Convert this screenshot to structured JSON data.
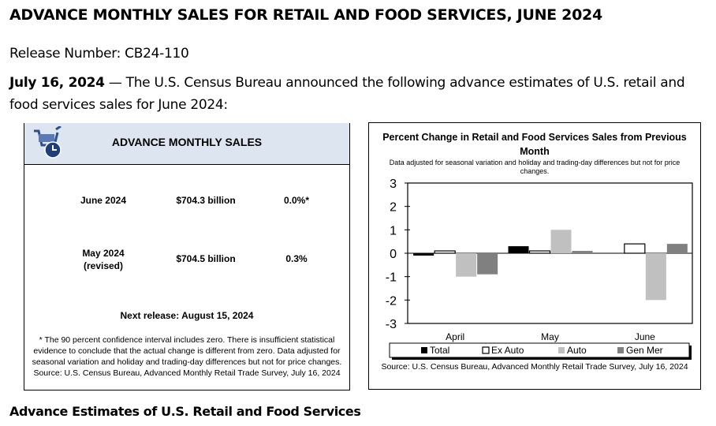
{
  "title": "ADVANCE MONTHLY SALES FOR RETAIL AND FOOD SERVICES, JUNE 2024",
  "release_number": "Release Number: CB24-110",
  "intro": {
    "date": "July 16, 2024",
    "text": " — The U.S. Census Bureau announced the following advance estimates of U.S. retail and food services sales for June 2024:"
  },
  "card": {
    "icon": "shopping-cart-clock-icon",
    "title": "ADVANCE MONTHLY SALES",
    "rows": [
      {
        "period": "June 2024",
        "sales": "$704.3 billion",
        "change": "0.0%*"
      },
      {
        "period": "May 2024",
        "period2": "(revised)",
        "sales": "$704.5 billion",
        "change": "0.3%"
      }
    ],
    "next_release": "Next release: August 15, 2024",
    "note": "* The 90 percent confidence interval includes zero. There is insufficient statistical evidence to conclude that the actual change is different from zero. Data adjusted for seasonal variation and holiday and trading-day differences but not for price changes. Source: U.S. Census Bureau, Advanced Monthly Retail Trade Survey, July 16, 2024"
  },
  "chart_data": {
    "type": "bar",
    "title": "Percent Change in Retail and Food Services Sales from Previous Month",
    "subtitle": "Data adjusted for seasonal variation and holiday and trading-day differences but not for price changes.",
    "source": "Source: U.S. Census Bureau, Advanced Monthly Retail Trade Survey, July 16, 2024",
    "categories": [
      "April",
      "May",
      "June"
    ],
    "ylim": [
      -3,
      3
    ],
    "yticks": [
      "3",
      "2",
      "1",
      "0",
      "-1",
      "-2",
      "-3"
    ],
    "legend_position": "bottom",
    "series": [
      {
        "name": "Total",
        "values": [
          -0.1,
          0.3,
          0.0
        ],
        "color": "#000000"
      },
      {
        "name": "Ex Auto",
        "values": [
          0.1,
          0.1,
          0.4
        ],
        "color": "#ffffff"
      },
      {
        "name": "Auto",
        "values": [
          -1.0,
          1.0,
          -2.0
        ],
        "color": "#c0c0c0"
      },
      {
        "name": "Gen Mer",
        "values": [
          -0.9,
          0.1,
          0.4
        ],
        "color": "#808080"
      }
    ]
  },
  "section_heading": "Advance Estimates of U.S. Retail and Food Services"
}
